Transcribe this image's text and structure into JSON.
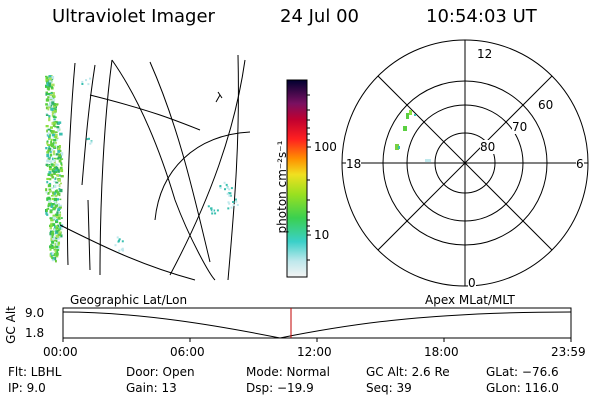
{
  "header": {
    "instrument": "Ultraviolet Imager",
    "date": "24 Jul 00",
    "time": "10:54:03 UT"
  },
  "colorbar": {
    "unit_label": "photon cm⁻²s⁻¹",
    "ticks": [
      "100",
      "10"
    ]
  },
  "polar": {
    "mlt_labels": {
      "top": "12",
      "left": "18",
      "right": "6",
      "bottom": "0"
    },
    "lat_labels": [
      "60",
      "70",
      "80"
    ]
  },
  "altitude_plot": {
    "left_label": "Geographic Lat/Lon",
    "right_label": "Apex MLat/MLT",
    "y_axis_label": "GC Alt",
    "y_ticks": [
      "9.0",
      "1.8"
    ],
    "x_ticks": [
      "00:00",
      "06:00",
      "12:00",
      "18:00",
      "23:59"
    ]
  },
  "footer": {
    "flt": "Flt: LBHL",
    "ip": "IP: 9.0",
    "door": "Door: Open",
    "gain": "Gain: 13",
    "mode": "Mode: Normal",
    "dsp": "Dsp: −19.9",
    "gc_alt": "GC Alt: 2.6 Re",
    "seq": "Seq: 39",
    "glat": "GLat: −76.6",
    "glon": "GLon: 116.0"
  }
}
